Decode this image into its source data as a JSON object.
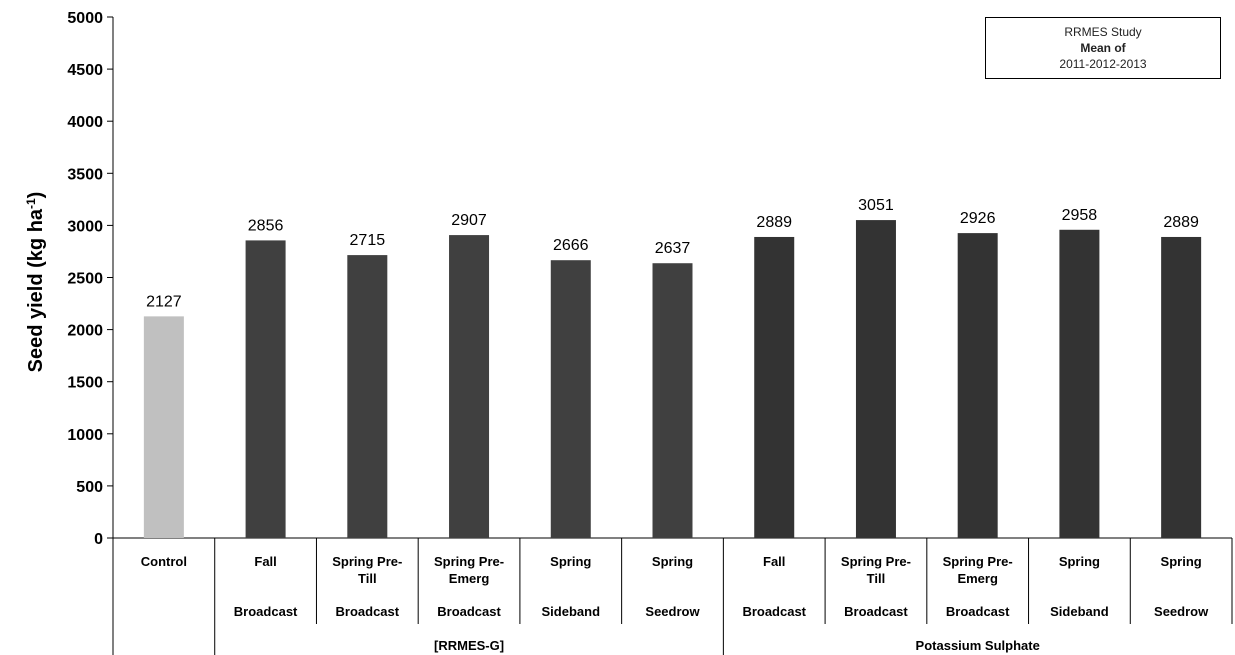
{
  "chart_data": {
    "type": "bar",
    "ylabel_main": "Seed yield (kg ha",
    "ylabel_sup": "-1",
    "ylabel_close": ")",
    "ylim": [
      0,
      5000
    ],
    "yticks": [
      "0",
      "500",
      "1000",
      "1500",
      "2000",
      "2500",
      "3000",
      "3500",
      "4000",
      "4500",
      "5000"
    ],
    "bars": [
      {
        "line1": "Control",
        "line2": "",
        "line3": "",
        "value": 2127,
        "label": "2127",
        "color": "#c0c0c0"
      },
      {
        "line1": "Fall",
        "line2": "",
        "line3": "Broadcast",
        "value": 2856,
        "label": "2856",
        "color": "#404040"
      },
      {
        "line1": "Spring Pre-",
        "line2": "Till",
        "line3": "Broadcast",
        "value": 2715,
        "label": "2715",
        "color": "#404040"
      },
      {
        "line1": "Spring Pre-",
        "line2": "Emerg",
        "line3": "Broadcast",
        "value": 2907,
        "label": "2907",
        "color": "#404040"
      },
      {
        "line1": "Spring",
        "line2": "",
        "line3": "Sideband",
        "value": 2666,
        "label": "2666",
        "color": "#404040"
      },
      {
        "line1": "Spring",
        "line2": "",
        "line3": "Seedrow",
        "value": 2637,
        "label": "2637",
        "color": "#404040"
      },
      {
        "line1": "Fall",
        "line2": "",
        "line3": "Broadcast",
        "value": 2889,
        "label": "2889",
        "color": "#333333"
      },
      {
        "line1": "Spring Pre-",
        "line2": "Till",
        "line3": "Broadcast",
        "value": 3051,
        "label": "3051",
        "color": "#333333"
      },
      {
        "line1": "Spring Pre-",
        "line2": "Emerg",
        "line3": "Broadcast",
        "value": 2926,
        "label": "2926",
        "color": "#333333"
      },
      {
        "line1": "Spring",
        "line2": "",
        "line3": "Sideband",
        "value": 2958,
        "label": "2958",
        "color": "#333333"
      },
      {
        "line1": "Spring",
        "line2": "",
        "line3": "Seedrow",
        "value": 2889,
        "label": "2889",
        "color": "#333333"
      }
    ],
    "groups": [
      {
        "label": "[RRMES-G]",
        "from": 1,
        "to": 5
      },
      {
        "label": "Potassium Sulphate",
        "from": 6,
        "to": 10
      }
    ]
  },
  "legend": {
    "line1": "RRMES Study",
    "line2": "Mean of",
    "line3": "2011-2012-2013"
  }
}
